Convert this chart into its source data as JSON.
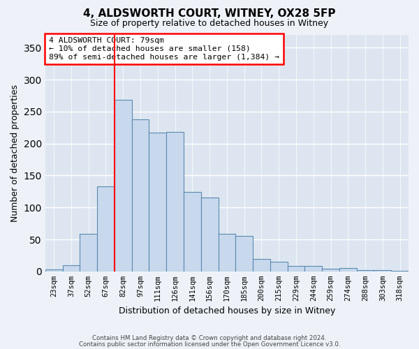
{
  "title": "4, ALDSWORTH COURT, WITNEY, OX28 5FP",
  "subtitle": "Size of property relative to detached houses in Witney",
  "xlabel": "Distribution of detached houses by size in Witney",
  "ylabel": "Number of detached properties",
  "bar_color": "#c8d8ed",
  "bar_edge_color": "#5a8ab0",
  "background_color": "#dde6f0",
  "grid_color": "#ffffff",
  "categories": [
    "23sqm",
    "37sqm",
    "52sqm",
    "67sqm",
    "82sqm",
    "97sqm",
    "111sqm",
    "126sqm",
    "141sqm",
    "156sqm",
    "170sqm",
    "185sqm",
    "200sqm",
    "215sqm",
    "229sqm",
    "244sqm",
    "259sqm",
    "274sqm",
    "288sqm",
    "303sqm",
    "318sqm"
  ],
  "values": [
    3,
    10,
    59,
    133,
    268,
    238,
    217,
    218,
    124,
    116,
    59,
    55,
    19,
    15,
    9,
    9,
    4,
    5,
    2,
    2,
    1
  ],
  "ylim": [
    0,
    370
  ],
  "yticks": [
    0,
    50,
    100,
    150,
    200,
    250,
    300,
    350
  ],
  "annotation_text": "4 ALDSWORTH COURT: 79sqm\n← 10% of detached houses are smaller (158)\n89% of semi-detached houses are larger (1,384) →",
  "vline_x": 3.5,
  "footer_line1": "Contains HM Land Registry data © Crown copyright and database right 2024.",
  "footer_line2": "Contains public sector information licensed under the Open Government Licence v3.0."
}
